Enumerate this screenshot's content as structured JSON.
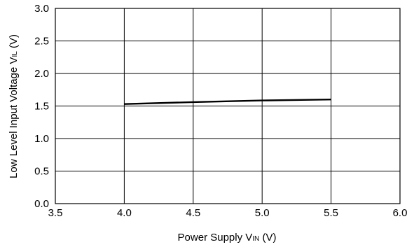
{
  "chart_data": {
    "type": "line",
    "title": "",
    "xlabel": {
      "main": "Power Supply V",
      "sub": "IN",
      "unit": " (V)"
    },
    "ylabel": {
      "main": "Low Level Input Voltage V",
      "sub": "IL",
      "unit": " (V)"
    },
    "xlim": [
      3.5,
      6.0
    ],
    "ylim": [
      0.0,
      3.0
    ],
    "x_ticks": [
      "3.5",
      "4.0",
      "4.5",
      "5.0",
      "5.5",
      "6.0"
    ],
    "y_ticks": [
      "0.0",
      "0.5",
      "1.0",
      "1.5",
      "2.0",
      "2.5",
      "3.0"
    ],
    "grid": true,
    "series": [
      {
        "x": [
          4.0,
          4.5,
          5.0,
          5.5
        ],
        "y": [
          1.53,
          1.56,
          1.585,
          1.6
        ]
      }
    ]
  }
}
